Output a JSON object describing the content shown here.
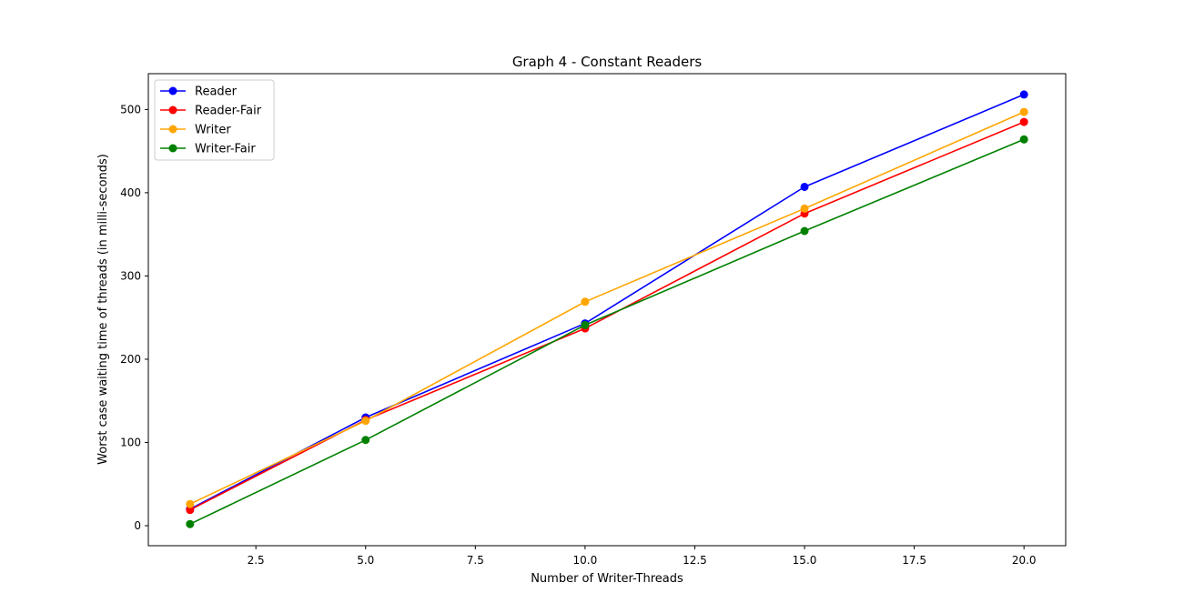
{
  "chart_data": {
    "type": "line",
    "title": "Graph 4 - Constant Readers",
    "xlabel": "Number of Writer-Threads",
    "ylabel": "Worst case waiting time of threads (in milli-seconds)",
    "x": [
      1,
      5,
      10,
      15,
      20
    ],
    "xlim": [
      0.05,
      20.95
    ],
    "ylim": [
      -24,
      543
    ],
    "xticks": [
      "2.5",
      "5.0",
      "7.5",
      "10.0",
      "12.5",
      "15.0",
      "17.5",
      "20.0"
    ],
    "xtick_values": [
      2.5,
      5.0,
      7.5,
      10.0,
      12.5,
      15.0,
      17.5,
      20.0
    ],
    "yticks": [
      "0",
      "100",
      "200",
      "300",
      "400",
      "500"
    ],
    "ytick_values": [
      0,
      100,
      200,
      300,
      400,
      500
    ],
    "grid": false,
    "legend_position": "upper-left",
    "series": [
      {
        "name": "Reader",
        "color": "#0000ff",
        "values": [
          20,
          130,
          243,
          407,
          518
        ]
      },
      {
        "name": "Reader-Fair",
        "color": "#ff0000",
        "values": [
          19,
          127,
          237,
          375,
          485
        ]
      },
      {
        "name": "Writer",
        "color": "#ffa500",
        "values": [
          26,
          126,
          269,
          381,
          497
        ]
      },
      {
        "name": "Writer-Fair",
        "color": "#008000",
        "values": [
          2,
          103,
          241,
          354,
          464
        ]
      }
    ]
  }
}
